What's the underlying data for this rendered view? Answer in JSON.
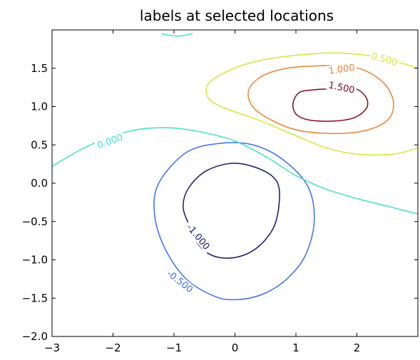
{
  "chart_data": {
    "type": "contour",
    "title": "labels at selected locations",
    "xlabel": "",
    "ylabel": "",
    "xlim": [
      -3,
      3
    ],
    "ylim": [
      -2,
      2
    ],
    "grid": false,
    "x_ticks": [
      {
        "value": -3,
        "label": "−3"
      },
      {
        "value": -2,
        "label": "−2"
      },
      {
        "value": -1,
        "label": "−1"
      },
      {
        "value": 0,
        "label": "0"
      },
      {
        "value": 1,
        "label": "1"
      },
      {
        "value": 2,
        "label": "2"
      }
    ],
    "y_ticks": [
      {
        "value": -2.0,
        "label": "−2.0"
      },
      {
        "value": -1.5,
        "label": "−1.5"
      },
      {
        "value": -1.0,
        "label": "−1.0"
      },
      {
        "value": -0.5,
        "label": "−0.5"
      },
      {
        "value": 0.0,
        "label": "0.0"
      },
      {
        "value": 0.5,
        "label": "0.5"
      },
      {
        "value": 1.0,
        "label": "1.0"
      },
      {
        "value": 1.5,
        "label": "1.5"
      }
    ],
    "levels": [
      {
        "level": -1.0,
        "label": "-1.000",
        "color": "#16166e",
        "closed": true,
        "points": [
          [
            -0.35,
            -0.95
          ],
          [
            0.0,
            -0.97
          ],
          [
            0.35,
            -0.85
          ],
          [
            0.62,
            -0.6
          ],
          [
            0.72,
            -0.3
          ],
          [
            0.7,
            0.0
          ],
          [
            0.45,
            0.17
          ],
          [
            0.0,
            0.26
          ],
          [
            -0.45,
            0.17
          ],
          [
            -0.75,
            -0.05
          ],
          [
            -0.85,
            -0.3
          ],
          [
            -0.75,
            -0.55
          ],
          [
            -0.6,
            -0.8
          ]
        ],
        "label_at": [
          -0.6,
          -0.7
        ],
        "label_angle": 50
      },
      {
        "level": -0.5,
        "label": "-0.500",
        "color": "#3b6ff0",
        "closed": true,
        "points": [
          [
            -0.35,
            -1.47
          ],
          [
            0.0,
            -1.52
          ],
          [
            0.45,
            -1.45
          ],
          [
            0.85,
            -1.25
          ],
          [
            1.15,
            -0.95
          ],
          [
            1.3,
            -0.5
          ],
          [
            1.2,
            -0.05
          ],
          [
            0.8,
            0.3
          ],
          [
            0.3,
            0.5
          ],
          [
            -0.25,
            0.52
          ],
          [
            -0.8,
            0.4
          ],
          [
            -1.25,
            0.0
          ],
          [
            -1.32,
            -0.4
          ],
          [
            -1.15,
            -0.85
          ],
          [
            -0.8,
            -1.25
          ]
        ],
        "label_at": [
          -0.9,
          -1.28
        ],
        "label_angle": 38
      },
      {
        "level": 0.0,
        "label": "0.000",
        "color": "#40e0c8",
        "closed": false,
        "points": [
          [
            -3.0,
            0.22
          ],
          [
            -2.5,
            0.45
          ],
          [
            -2.0,
            0.62
          ],
          [
            -1.5,
            0.71
          ],
          [
            -1.0,
            0.72
          ],
          [
            -0.5,
            0.66
          ],
          [
            0.0,
            0.55
          ],
          [
            0.5,
            0.35
          ],
          [
            1.0,
            0.1
          ],
          [
            1.5,
            -0.08
          ],
          [
            2.0,
            -0.2
          ],
          [
            2.5,
            -0.3
          ],
          [
            3.0,
            -0.4
          ]
        ],
        "label_at": [
          -2.05,
          0.55
        ],
        "label_angle": -20
      },
      {
        "level": 0.0,
        "label": "",
        "color": "#40e0c8",
        "closed": false,
        "points": [
          [
            -1.2,
            1.95
          ],
          [
            -0.95,
            1.92
          ],
          [
            -0.7,
            1.95
          ]
        ],
        "label_at": null,
        "label_angle": 0
      },
      {
        "level": 0.5,
        "label": "0.500",
        "color": "#cfe838",
        "closed": false,
        "points": [
          [
            3.0,
            0.46
          ],
          [
            2.6,
            0.38
          ],
          [
            2.0,
            0.38
          ],
          [
            1.5,
            0.46
          ],
          [
            1.0,
            0.62
          ],
          [
            0.4,
            0.82
          ],
          [
            -0.35,
            1.05
          ],
          [
            -0.45,
            1.28
          ],
          [
            -0.1,
            1.47
          ],
          [
            0.4,
            1.6
          ],
          [
            1.0,
            1.67
          ],
          [
            1.6,
            1.7
          ],
          [
            2.05,
            1.68
          ],
          [
            2.5,
            1.62
          ],
          [
            3.0,
            1.5
          ]
        ],
        "label_at": [
          2.45,
          1.62
        ],
        "label_angle": 15
      },
      {
        "level": 1.0,
        "label": "1.000",
        "color": "#f08030",
        "closed": true,
        "points": [
          [
            1.3,
            1.53
          ],
          [
            1.7,
            1.53
          ],
          [
            2.1,
            1.48
          ],
          [
            2.45,
            1.3
          ],
          [
            2.6,
            1.05
          ],
          [
            2.5,
            0.82
          ],
          [
            2.1,
            0.68
          ],
          [
            1.5,
            0.65
          ],
          [
            0.9,
            0.72
          ],
          [
            0.35,
            0.95
          ],
          [
            0.22,
            1.2
          ],
          [
            0.45,
            1.4
          ],
          [
            0.85,
            1.5
          ]
        ],
        "label_at": [
          1.75,
          1.49
        ],
        "label_angle": -8
      },
      {
        "level": 1.5,
        "label": "1.500",
        "color": "#7f0b1a",
        "closed": true,
        "points": [
          [
            1.55,
            1.23
          ],
          [
            1.95,
            1.24
          ],
          [
            2.15,
            1.12
          ],
          [
            2.15,
            0.97
          ],
          [
            1.9,
            0.84
          ],
          [
            1.4,
            0.81
          ],
          [
            1.05,
            0.87
          ],
          [
            0.95,
            1.02
          ],
          [
            1.05,
            1.18
          ],
          [
            1.3,
            1.22
          ]
        ],
        "label_at": [
          1.75,
          1.25
        ],
        "label_angle": 12
      }
    ]
  }
}
